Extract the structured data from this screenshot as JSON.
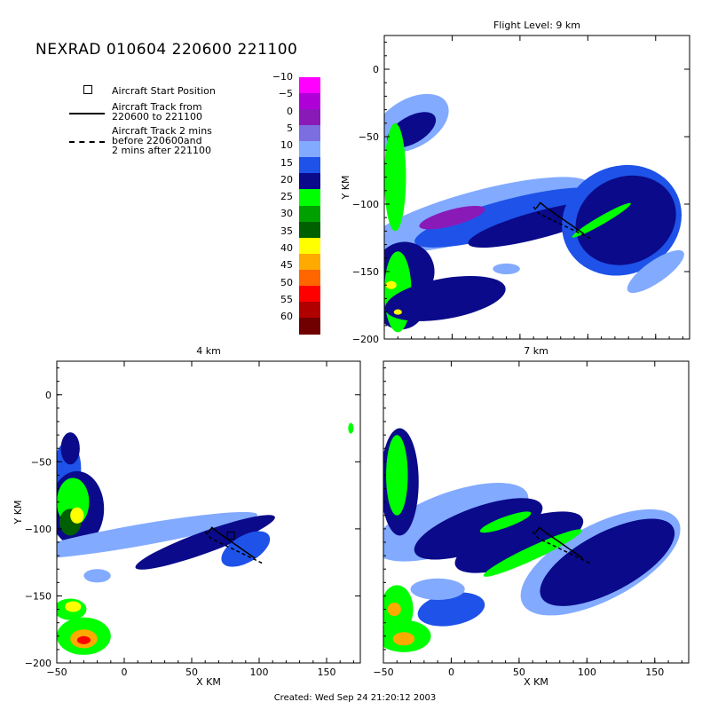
{
  "title": "NEXRAD 010604 220600 221100",
  "legend": {
    "start": "Aircraft Start Position",
    "track": "Aircraft Track from\n220600 to 221100",
    "track2": "Aircraft Track 2 mins\nbefore 220600and\n2 mins after 221100"
  },
  "colorbar": {
    "labels": [
      "-10",
      "-5",
      "0",
      "5",
      "10",
      "15",
      "20",
      "25",
      "30",
      "35",
      "40",
      "45",
      "50",
      "55",
      "60"
    ],
    "colors": [
      "#ff00ff",
      "#b000d8",
      "#8a1ab8",
      "#7c6ee0",
      "#82aaff",
      "#1e52e8",
      "#0a0a8a",
      "#00ff00",
      "#00a000",
      "#006000",
      "#ffff00",
      "#ffaa00",
      "#ff6600",
      "#ff0000",
      "#b00000",
      "#700000"
    ]
  },
  "credit": "Created: Wed Sep 24 21:20:12 2003",
  "chart_data": [
    {
      "type": "heatmap",
      "title": "Flight Level: 9 km",
      "ylabel": "Y KM",
      "xlabel": "",
      "xlim": [
        -50,
        175
      ],
      "ylim": [
        -200,
        25
      ],
      "yticks": [
        0,
        -50,
        -100,
        -150,
        -200
      ],
      "xticks": [],
      "track": {
        "start": [
          62,
          -103
        ],
        "end": [
          97,
          -122
        ]
      }
    },
    {
      "type": "heatmap",
      "title": "4 km",
      "xlabel": "X KM",
      "ylabel": "Y KM",
      "xlim": [
        -50,
        175
      ],
      "ylim": [
        -200,
        25
      ],
      "xticks": [
        -50,
        0,
        50,
        100,
        150
      ],
      "yticks": [
        0,
        -50,
        -100,
        -150,
        -200
      ],
      "track": {
        "start": [
          62,
          -103
        ],
        "end": [
          97,
          -122
        ]
      },
      "start_marker": [
        79,
        -105
      ]
    },
    {
      "type": "heatmap",
      "title": "7 km",
      "xlabel": "X KM",
      "ylabel": "",
      "xlim": [
        -50,
        175
      ],
      "ylim": [
        -200,
        25
      ],
      "xticks": [
        -50,
        0,
        50,
        100,
        150
      ],
      "yticks": [],
      "track": {
        "start": [
          62,
          -103
        ],
        "end": [
          97,
          -122
        ]
      }
    }
  ]
}
